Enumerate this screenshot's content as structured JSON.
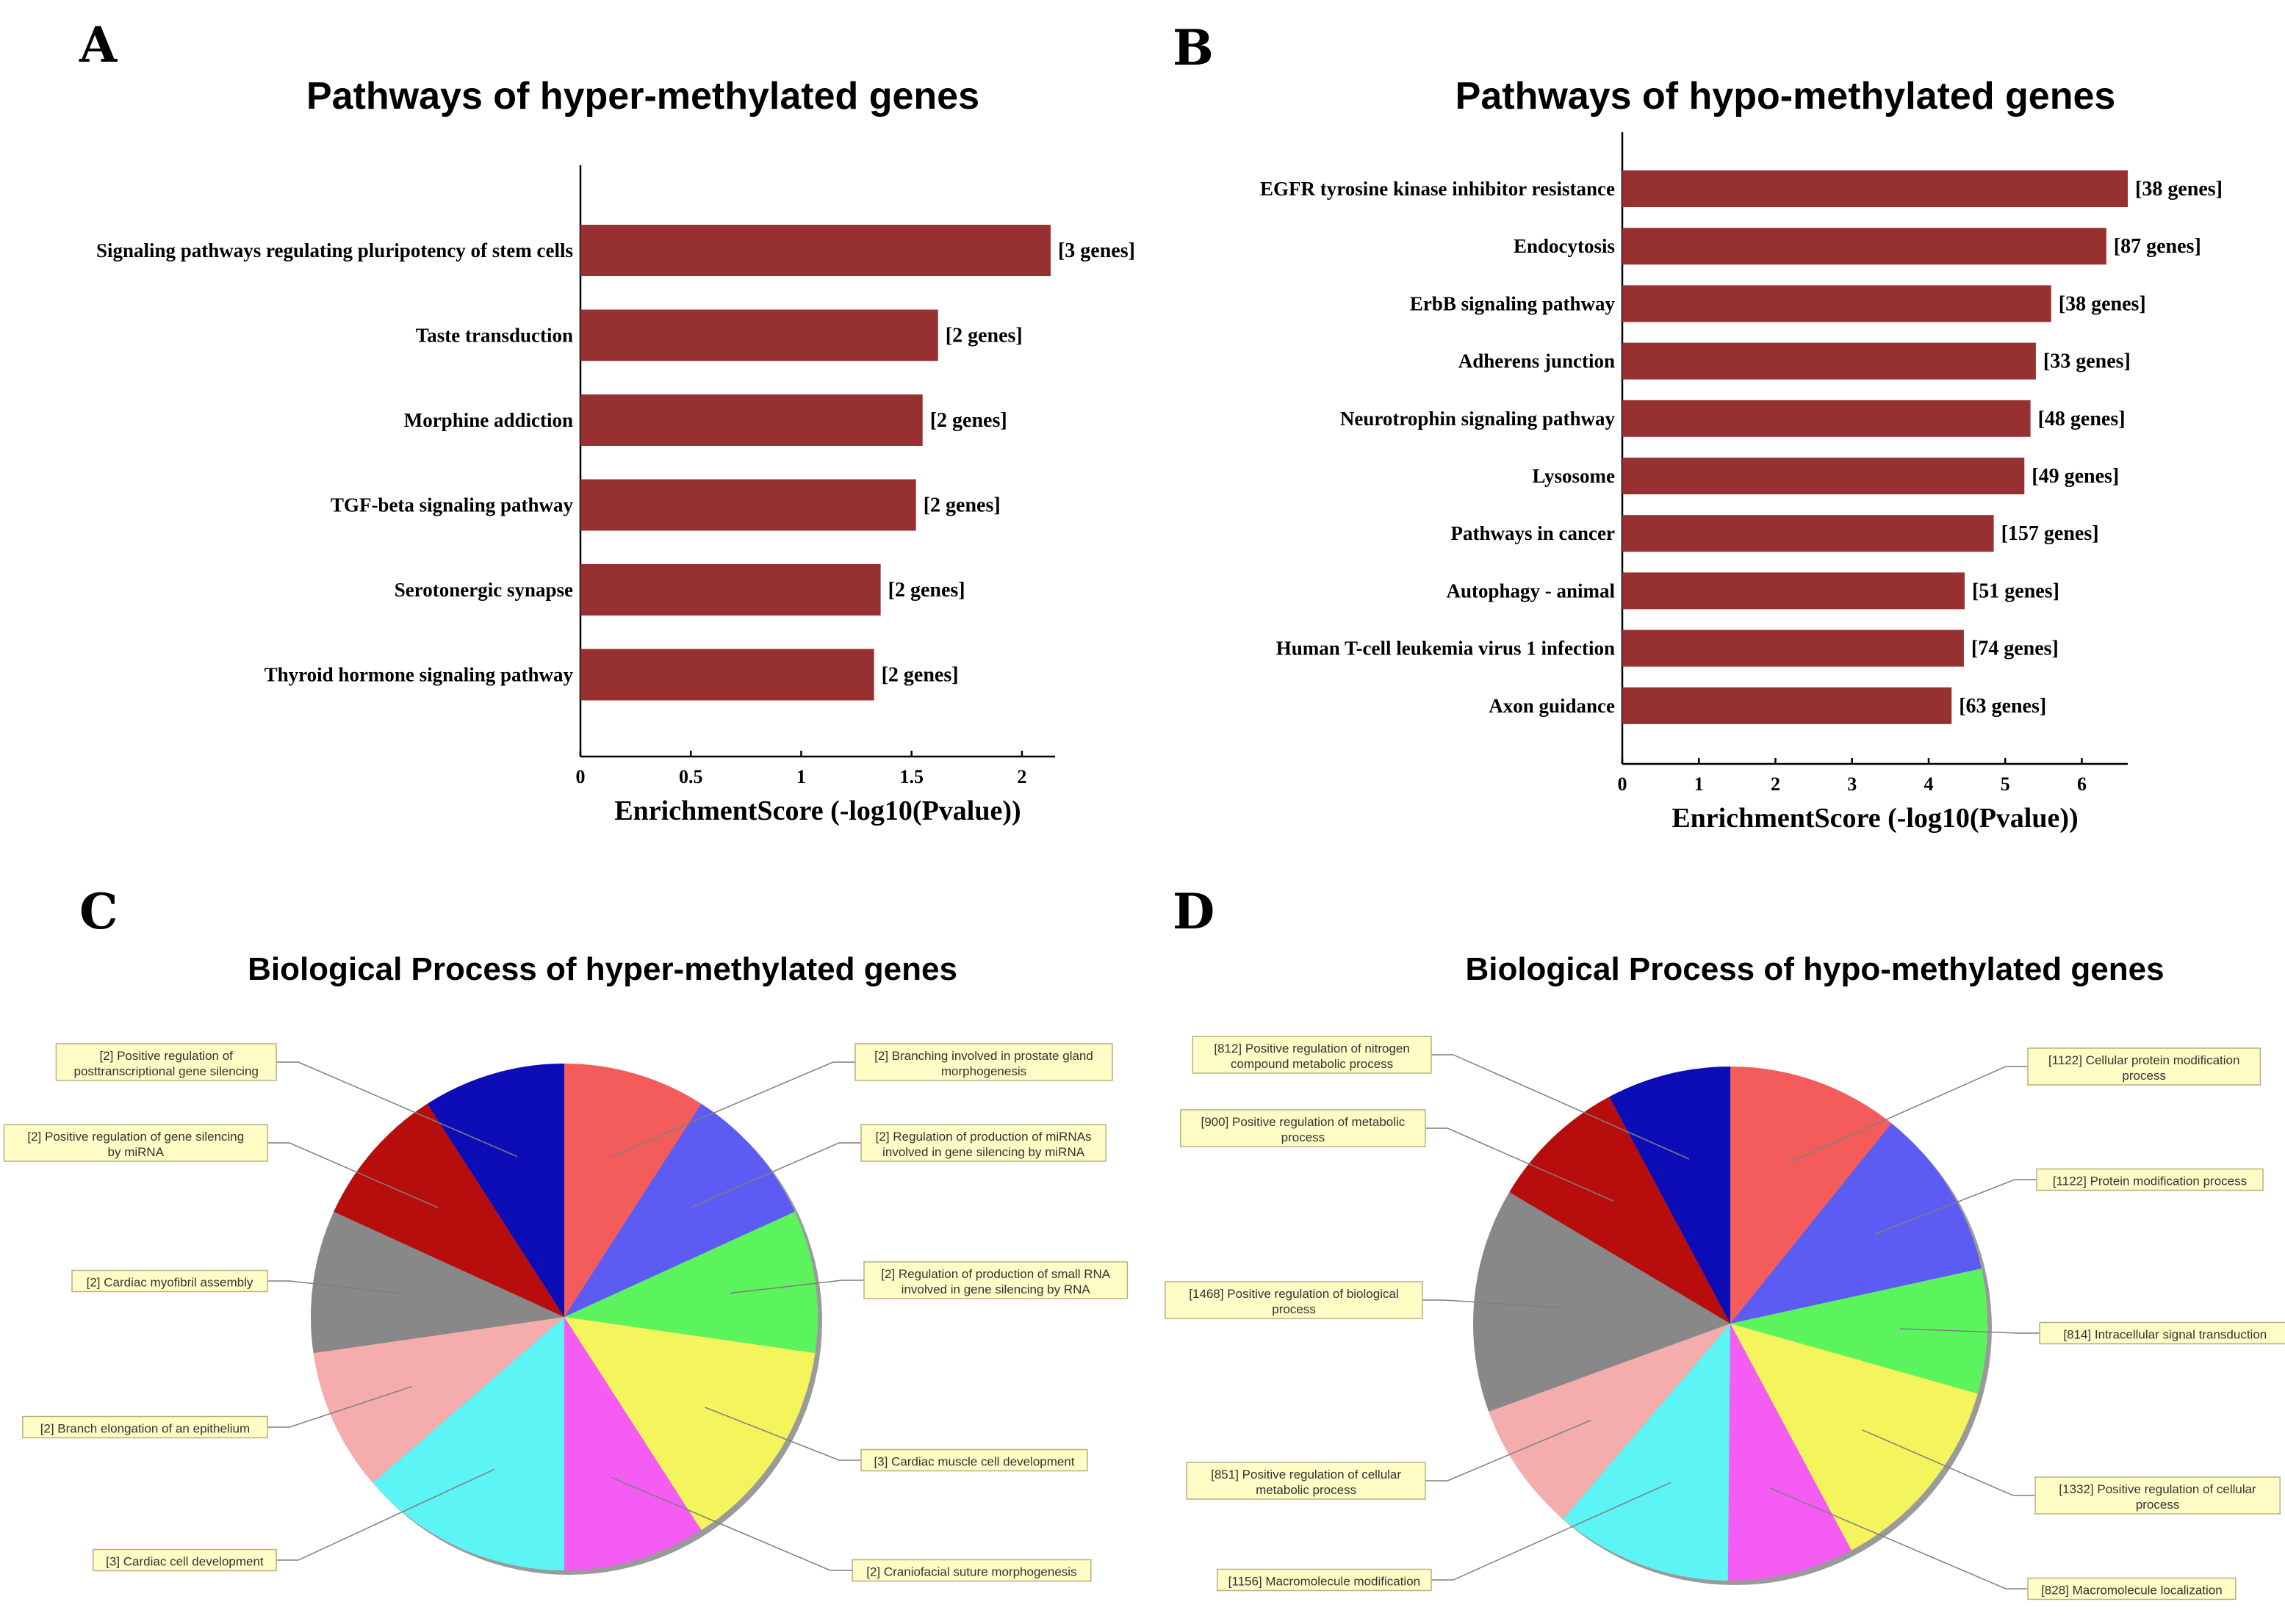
{
  "panels": {
    "A": {
      "letter": "A",
      "chart_data": {
        "type": "bar",
        "orientation": "horizontal",
        "title": "Pathways of hyper-methylated genes",
        "categories": [
          "Signaling pathways regulating pluripotency of stem cells",
          "Taste transduction",
          "Morphine addiction",
          "TGF-beta signaling pathway",
          "Serotonergic synapse",
          "Thyroid hormone signaling pathway"
        ],
        "values": [
          2.13,
          1.62,
          1.55,
          1.52,
          1.36,
          1.33
        ],
        "bar_labels": [
          "[3 genes]",
          "[2 genes]",
          "[2 genes]",
          "[2 genes]",
          "[2 genes]",
          "[2 genes]"
        ],
        "xlabel": "EnrichmentScore (-log10(Pvalue))",
        "xlim": [
          0,
          2.15
        ],
        "xticks": [
          0,
          0.5,
          1,
          1.5,
          2
        ],
        "xtick_labels": [
          "0",
          "0.5",
          "1",
          "1.5",
          "2"
        ],
        "bar_color": "#973131"
      }
    },
    "B": {
      "letter": "B",
      "chart_data": {
        "type": "bar",
        "orientation": "horizontal",
        "title": "Pathways of hypo-methylated genes",
        "categories": [
          "EGFR tyrosine kinase inhibitor resistance",
          "Endocytosis",
          "ErbB signaling pathway",
          "Adherens junction",
          "Neurotrophin signaling pathway",
          "Lysosome",
          "Pathways in cancer",
          "Autophagy - animal",
          "Human T-cell leukemia virus 1 infection",
          "Axon guidance"
        ],
        "values": [
          6.6,
          6.32,
          5.6,
          5.4,
          5.33,
          5.25,
          4.85,
          4.47,
          4.46,
          4.3
        ],
        "bar_labels": [
          "[38 genes]",
          "[87 genes]",
          "[38 genes]",
          "[33 genes]",
          "[48 genes]",
          "[49 genes]",
          "[157 genes]",
          "[51 genes]",
          "[74 genes]",
          "[63 genes]"
        ],
        "xlabel": "EnrichmentScore (-log10(Pvalue))",
        "xlim": [
          0,
          6.6
        ],
        "xticks": [
          0,
          1,
          2,
          3,
          4,
          5,
          6
        ],
        "xtick_labels": [
          "0",
          "1",
          "2",
          "3",
          "4",
          "5",
          "6"
        ],
        "bar_color": "#973131"
      }
    },
    "C": {
      "letter": "C",
      "chart_data": {
        "type": "pie",
        "title": "Biological Process of hyper-methylated genes",
        "slices": [
          {
            "label": "[2] Branching involved in prostate gland morphogenesis",
            "lines": [
              "[2] Branching involved in prostate gland",
              "morphogenesis"
            ],
            "value": 2,
            "color": "#f45c5c",
            "side": "right"
          },
          {
            "label": "[2] Regulation of production of miRNAs involved in gene silencing by miRNA",
            "lines": [
              "[2] Regulation of production of miRNAs",
              "involved in gene silencing by miRNA"
            ],
            "value": 2,
            "color": "#5c5cf4",
            "side": "right"
          },
          {
            "label": "[2] Regulation of production of small RNA involved in gene silencing by RNA",
            "lines": [
              "[2] Regulation of production of small RNA",
              "involved in gene silencing by RNA"
            ],
            "value": 2,
            "color": "#5cf45c",
            "side": "right"
          },
          {
            "label": "[3] Cardiac muscle cell development",
            "lines": [
              "[3] Cardiac muscle cell development"
            ],
            "value": 3,
            "color": "#f4f45c",
            "side": "right"
          },
          {
            "label": "[2] Craniofacial suture morphogenesis",
            "lines": [
              "[2] Craniofacial suture morphogenesis"
            ],
            "value": 2,
            "color": "#f45cf4",
            "side": "right"
          },
          {
            "label": "[3] Cardiac cell development",
            "lines": [
              "[3] Cardiac cell development"
            ],
            "value": 3,
            "color": "#5cf4f4",
            "side": "left"
          },
          {
            "label": "[2] Branch elongation of an epithelium",
            "lines": [
              "[2] Branch elongation of an epithelium"
            ],
            "value": 2,
            "color": "#f4acac",
            "side": "left"
          },
          {
            "label": "[2] Cardiac myofibril assembly",
            "lines": [
              "[2] Cardiac myofibril assembly"
            ],
            "value": 2,
            "color": "#888888",
            "side": "left"
          },
          {
            "label": "[2] Positive regulation of gene silencing by miRNA",
            "lines": [
              "[2] Positive regulation of gene silencing",
              "by miRNA"
            ],
            "value": 2,
            "color": "#b80d0d",
            "side": "left"
          },
          {
            "label": "[2] Positive regulation of posttranscriptional gene silencing",
            "lines": [
              "[2] Positive regulation of",
              "posttranscriptional gene silencing"
            ],
            "value": 2,
            "color": "#0d0db8",
            "side": "left"
          }
        ]
      }
    },
    "D": {
      "letter": "D",
      "chart_data": {
        "type": "pie",
        "title": "Biological Process of hypo-methylated genes",
        "slices": [
          {
            "label": "[1122] Cellular protein modification process",
            "lines": [
              "[1122] Cellular protein modification",
              "process"
            ],
            "value": 1122,
            "color": "#f45c5c",
            "side": "right"
          },
          {
            "label": "[1122] Protein modification process",
            "lines": [
              "[1122] Protein modification process"
            ],
            "value": 1122,
            "color": "#5c5cf4",
            "side": "right"
          },
          {
            "label": "[814] Intracellular signal transduction",
            "lines": [
              "[814] Intracellular signal transduction"
            ],
            "value": 814,
            "color": "#5cf45c",
            "side": "right"
          },
          {
            "label": "[1332] Positive regulation of cellular process",
            "lines": [
              "[1332] Positive regulation of cellular",
              "process"
            ],
            "value": 1332,
            "color": "#f4f45c",
            "side": "right"
          },
          {
            "label": "[828] Macromolecule localization",
            "lines": [
              "[828] Macromolecule localization"
            ],
            "value": 828,
            "color": "#f45cf4",
            "side": "right"
          },
          {
            "label": "[1156] Macromolecule modification",
            "lines": [
              "[1156] Macromolecule modification"
            ],
            "value": 1156,
            "color": "#5cf4f4",
            "side": "left"
          },
          {
            "label": "[851] Positive regulation of cellular metabolic process",
            "lines": [
              "[851] Positive regulation of cellular",
              "metabolic process"
            ],
            "value": 851,
            "color": "#f4acac",
            "side": "left"
          },
          {
            "label": "[1468] Positive regulation of biological process",
            "lines": [
              "[1468] Positive regulation of biological",
              "process"
            ],
            "value": 1468,
            "color": "#888888",
            "side": "left"
          },
          {
            "label": "[900] Positive regulation of metabolic process",
            "lines": [
              "[900] Positive regulation of metabolic",
              "process"
            ],
            "value": 900,
            "color": "#b80d0d",
            "side": "left"
          },
          {
            "label": "[812] Positive regulation of nitrogen compound metabolic process",
            "lines": [
              "[812] Positive regulation of nitrogen",
              "compound metabolic process"
            ],
            "value": 812,
            "color": "#0d0db8",
            "side": "left"
          }
        ]
      }
    }
  }
}
